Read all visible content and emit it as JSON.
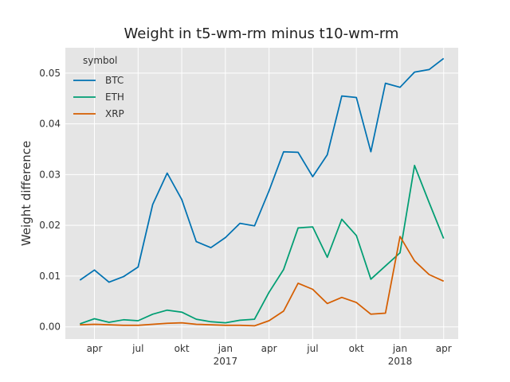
{
  "chart_data": {
    "type": "line",
    "title": "Weight in t5-wm-rm minus t10-wm-rm",
    "ylabel": "Weight difference",
    "legend_title": "symbol",
    "legend": "upper left",
    "grid": true,
    "x": [
      "2016-03",
      "2016-04",
      "2016-05",
      "2016-06",
      "2016-07",
      "2016-08",
      "2016-09",
      "2016-10",
      "2016-11",
      "2016-12",
      "2017-01",
      "2017-02",
      "2017-03",
      "2017-04",
      "2017-05",
      "2017-06",
      "2017-07",
      "2017-08",
      "2017-09",
      "2017-10",
      "2017-11",
      "2017-12",
      "2018-01",
      "2018-02",
      "2018-03",
      "2018-04"
    ],
    "series": [
      {
        "name": "BTC",
        "color": "#0072b2",
        "values": [
          0.0092,
          0.0112,
          0.0088,
          0.0099,
          0.0118,
          0.0241,
          0.0303,
          0.0251,
          0.0168,
          0.0156,
          0.0176,
          0.0204,
          0.0199,
          0.0268,
          0.0345,
          0.0344,
          0.0296,
          0.0339,
          0.0455,
          0.0452,
          0.0345,
          0.048,
          0.0472,
          0.0502,
          0.0507,
          0.0529
        ]
      },
      {
        "name": "ETH",
        "color": "#009e73",
        "values": [
          0.0006,
          0.0016,
          0.0009,
          0.0014,
          0.0012,
          0.0025,
          0.0033,
          0.0029,
          0.0015,
          0.001,
          0.0008,
          0.0013,
          0.0015,
          0.0068,
          0.0113,
          0.0195,
          0.0197,
          0.0137,
          0.0212,
          0.018,
          0.0094,
          0.012,
          0.0146,
          0.0318,
          0.0245,
          0.0174
        ]
      },
      {
        "name": "XRP",
        "color": "#d55e00",
        "values": [
          0.0004,
          0.0005,
          0.0004,
          0.0003,
          0.0003,
          0.0005,
          0.0007,
          0.0008,
          0.0005,
          0.0004,
          0.0003,
          0.0003,
          0.0002,
          0.0012,
          0.0031,
          0.0086,
          0.0074,
          0.0046,
          0.0058,
          0.0048,
          0.0025,
          0.0027,
          0.0178,
          0.013,
          0.0103,
          0.009
        ]
      }
    ],
    "xlim": [
      "2016-02",
      "2018-05"
    ],
    "xticks": [
      {
        "value": "2016-04",
        "label": "apr"
      },
      {
        "value": "2016-07",
        "label": "jul"
      },
      {
        "value": "2016-10",
        "label": "okt"
      },
      {
        "value": "2017-01",
        "label": "jan\n2017"
      },
      {
        "value": "2017-04",
        "label": "apr"
      },
      {
        "value": "2017-07",
        "label": "jul"
      },
      {
        "value": "2017-10",
        "label": "okt"
      },
      {
        "value": "2018-01",
        "label": "jan\n2018"
      },
      {
        "value": "2018-04",
        "label": "apr"
      }
    ],
    "ylim": [
      -0.0024,
      0.055
    ],
    "yticks": [
      {
        "value": 0,
        "label": "0.00"
      },
      {
        "value": 0.01,
        "label": "0.01"
      },
      {
        "value": 0.02,
        "label": "0.02"
      },
      {
        "value": 0.03,
        "label": "0.03"
      },
      {
        "value": 0.04,
        "label": "0.04"
      },
      {
        "value": 0.05,
        "label": "0.05"
      }
    ]
  }
}
